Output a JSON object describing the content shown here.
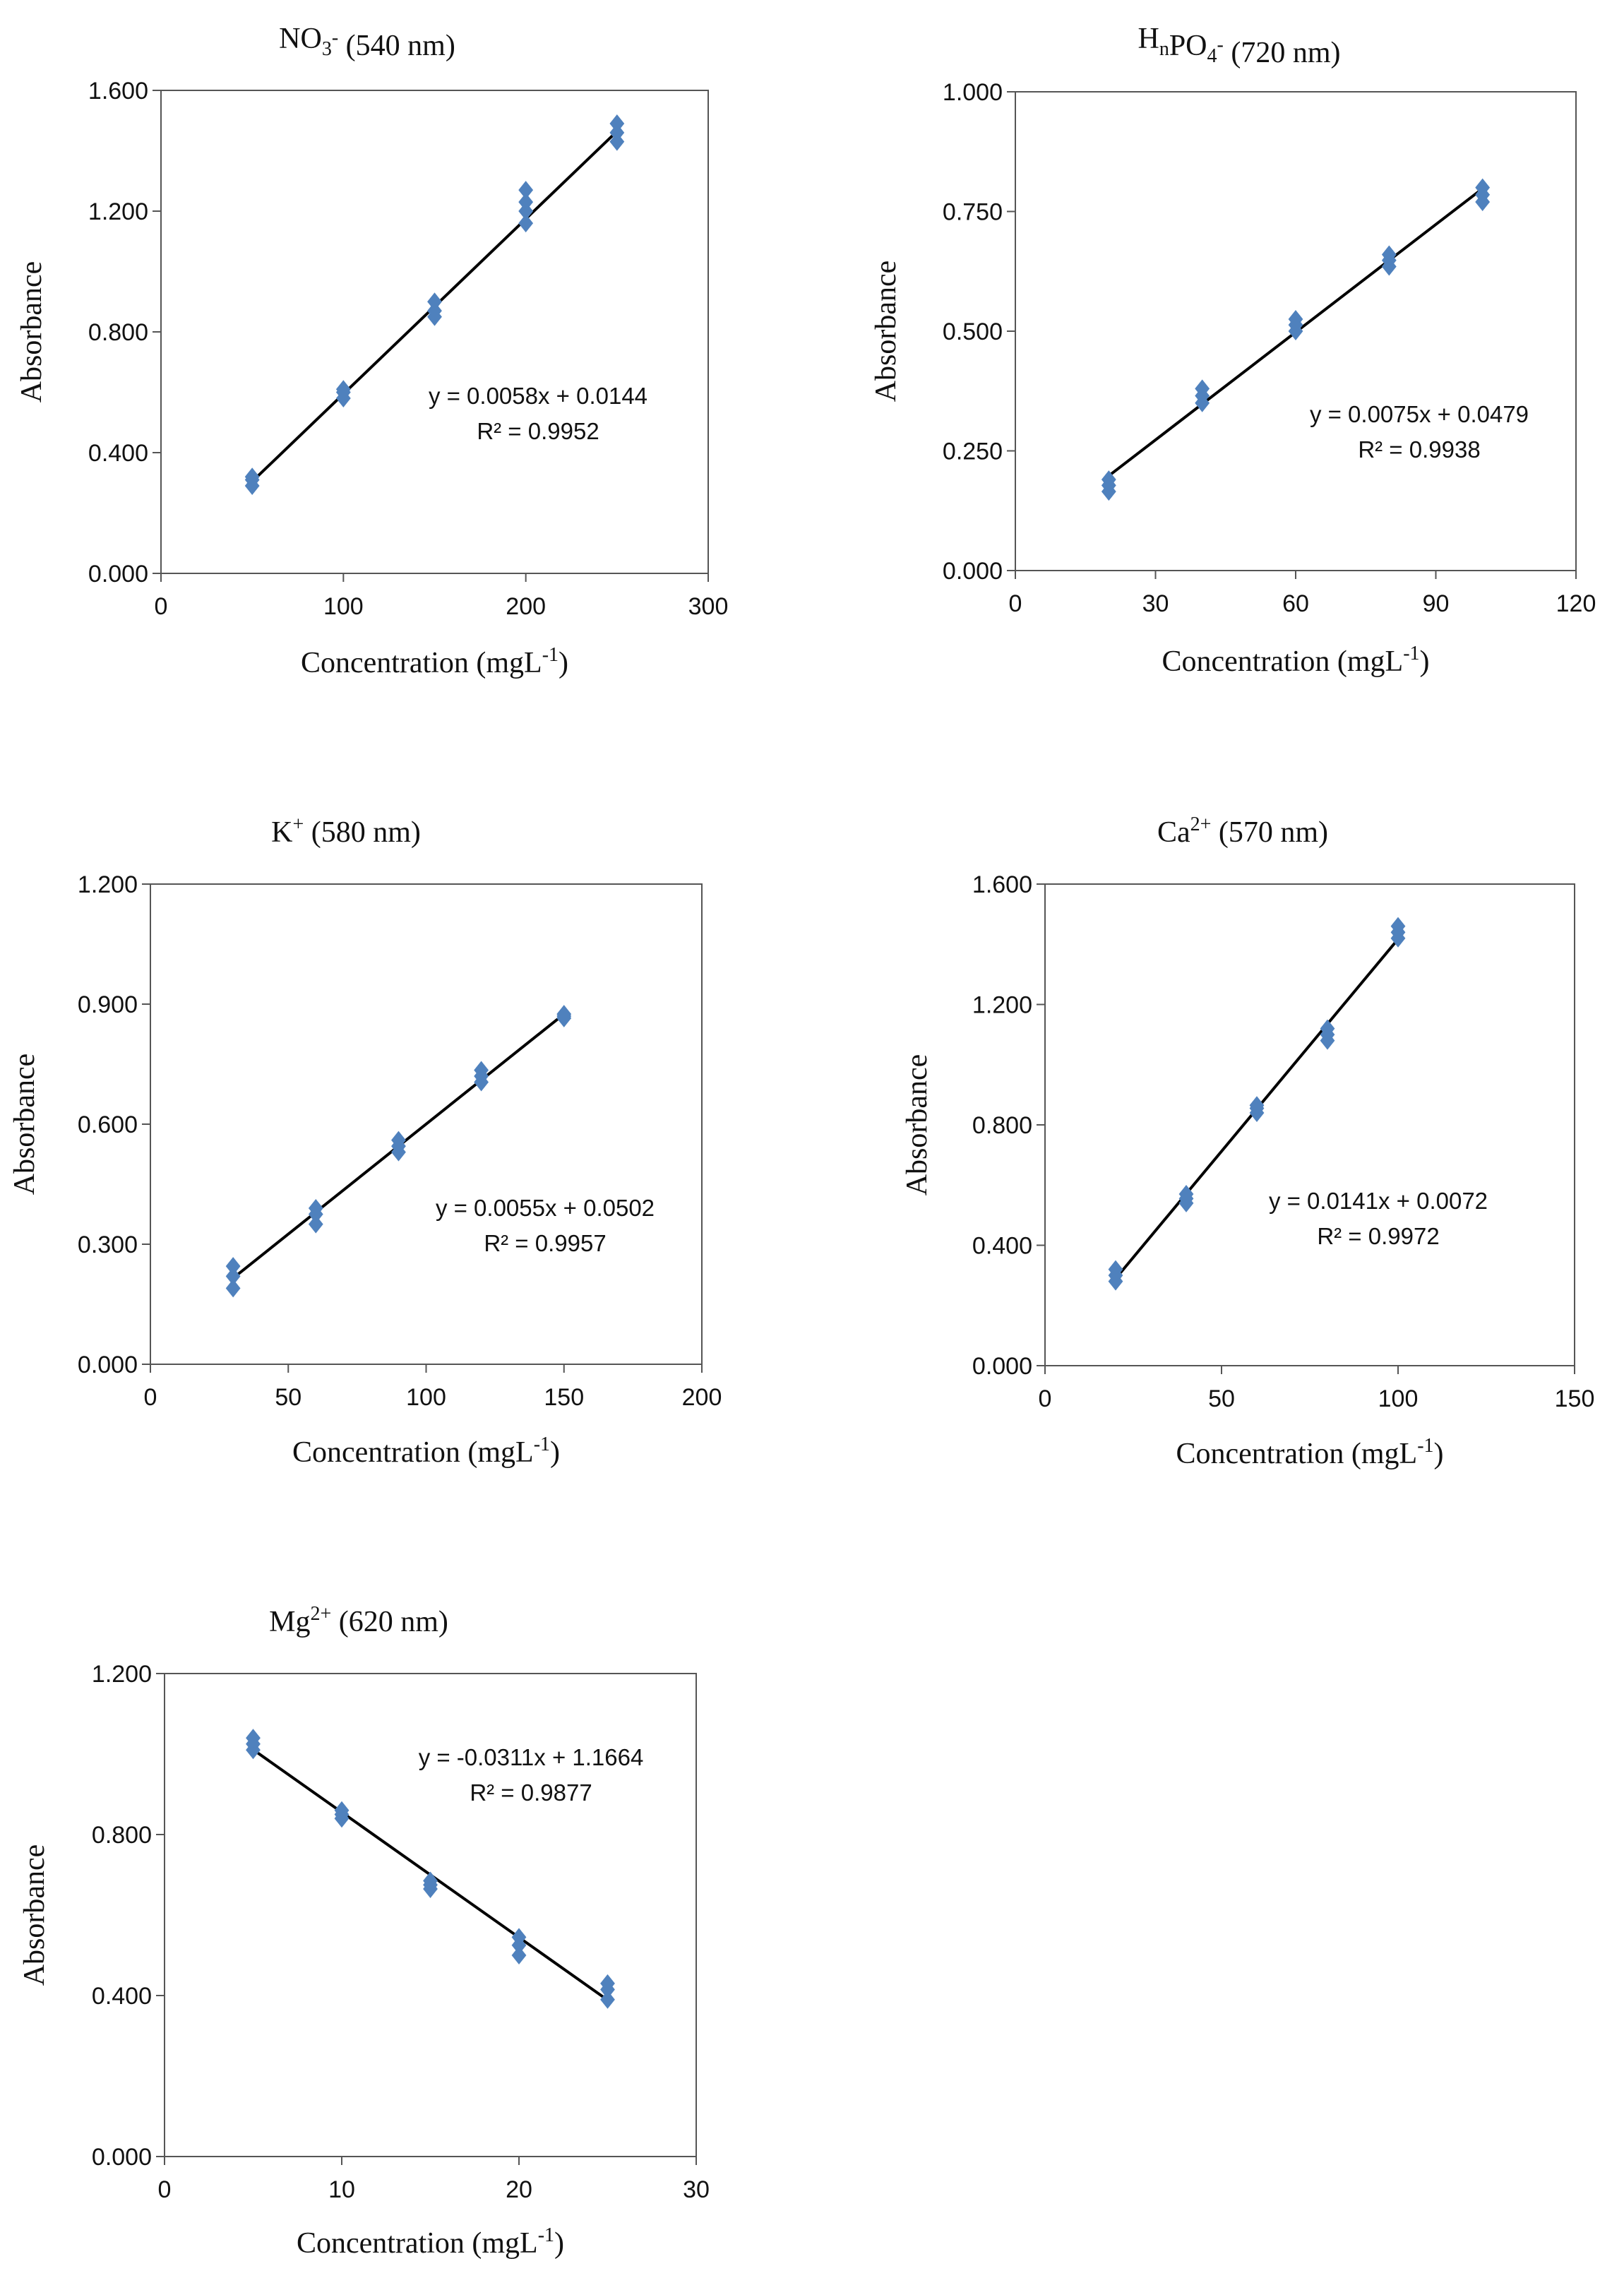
{
  "marker_color": "#4f81bd",
  "line_color": "#000000",
  "chart_data": [
    {
      "type": "scatter",
      "title": {
        "main": "NO",
        "sub": "3",
        "sup": "-",
        "rest": " (540 nm)"
      },
      "xlabel": {
        "main": "Concentration (mgL",
        "sup": "-1",
        "end": ")"
      },
      "ylabel": "Absorbance",
      "xlim": [
        0,
        300
      ],
      "ylim": [
        0,
        1.6
      ],
      "xticks": [
        "0",
        "100",
        "200",
        "300"
      ],
      "yticks": [
        "0.000",
        "0.400",
        "0.800",
        "1.200",
        "1.600"
      ],
      "points": [
        [
          50,
          0.29
        ],
        [
          50,
          0.31
        ],
        [
          50,
          0.32
        ],
        [
          100,
          0.58
        ],
        [
          100,
          0.6
        ],
        [
          100,
          0.61
        ],
        [
          150,
          0.85
        ],
        [
          150,
          0.87
        ],
        [
          150,
          0.9
        ],
        [
          200,
          1.16
        ],
        [
          200,
          1.2
        ],
        [
          200,
          1.23
        ],
        [
          200,
          1.27
        ],
        [
          250,
          1.43
        ],
        [
          250,
          1.46
        ],
        [
          250,
          1.49
        ]
      ],
      "fit": {
        "slope": 0.0058,
        "intercept": 0.0144,
        "x_range": [
          50,
          250
        ]
      },
      "equation": "y = 0.0058x + 0.0144",
      "r2": "R² = 0.9952"
    },
    {
      "type": "scatter",
      "title": {
        "main": "H",
        "sub": "n",
        "mid": "PO",
        "sub2": "4",
        "sup": "-",
        "rest": " (720 nm)"
      },
      "xlabel": {
        "main": "Concentration  (mgL",
        "sup": "-1",
        "end": ")"
      },
      "ylabel": "Absorbance",
      "xlim": [
        0,
        120
      ],
      "ylim": [
        0,
        1.0
      ],
      "xticks": [
        "0",
        "30",
        "60",
        "90",
        "120"
      ],
      "yticks": [
        "0.000",
        "0.250",
        "0.500",
        "0.750",
        "1.000"
      ],
      "points": [
        [
          20,
          0.165
        ],
        [
          20,
          0.178
        ],
        [
          20,
          0.19
        ],
        [
          40,
          0.35
        ],
        [
          40,
          0.365
        ],
        [
          40,
          0.38
        ],
        [
          60,
          0.5
        ],
        [
          60,
          0.513
        ],
        [
          60,
          0.525
        ],
        [
          80,
          0.635
        ],
        [
          80,
          0.648
        ],
        [
          80,
          0.66
        ],
        [
          100,
          0.77
        ],
        [
          100,
          0.785
        ],
        [
          100,
          0.8
        ]
      ],
      "fit": {
        "slope": 0.0075,
        "intercept": 0.0479,
        "x_range": [
          20,
          100
        ]
      },
      "equation": "y = 0.0075x + 0.0479",
      "r2": "R² = 0.9938"
    },
    {
      "type": "scatter",
      "title": {
        "main": "K",
        "sup": "+",
        "rest": " (580 nm)"
      },
      "xlabel": {
        "main": "Concentration  (mgL",
        "sup": "-1",
        "end": ")"
      },
      "ylabel": "Absorbance",
      "xlim": [
        0,
        200
      ],
      "ylim": [
        0,
        1.2
      ],
      "xticks": [
        "0",
        "50",
        "100",
        "150",
        "200"
      ],
      "yticks": [
        "0.000",
        "0.300",
        "0.600",
        "0.900",
        "1.200"
      ],
      "points": [
        [
          30,
          0.19
        ],
        [
          30,
          0.22
        ],
        [
          30,
          0.245
        ],
        [
          60,
          0.35
        ],
        [
          60,
          0.375
        ],
        [
          60,
          0.39
        ],
        [
          90,
          0.53
        ],
        [
          90,
          0.545
        ],
        [
          90,
          0.56
        ],
        [
          120,
          0.705
        ],
        [
          120,
          0.72
        ],
        [
          120,
          0.735
        ],
        [
          150,
          0.865
        ],
        [
          150,
          0.87
        ],
        [
          150,
          0.875
        ]
      ],
      "fit": {
        "slope": 0.0055,
        "intercept": 0.0502,
        "x_range": [
          30,
          150
        ]
      },
      "equation": "y = 0.0055x + 0.0502",
      "r2": "R² = 0.9957"
    },
    {
      "type": "scatter",
      "title": {
        "main": "Ca",
        "sup": "2+",
        "rest": " (570 nm)"
      },
      "xlabel": {
        "main": "Concentration  (mgL",
        "sup": "-1",
        "end": ")"
      },
      "ylabel": "Absorbance",
      "xlim": [
        0,
        150
      ],
      "ylim": [
        0,
        1.6
      ],
      "xticks": [
        "0",
        "50",
        "100",
        "150"
      ],
      "yticks": [
        "0.000",
        "0.400",
        "0.800",
        "1.200",
        "1.600"
      ],
      "points": [
        [
          20,
          0.28
        ],
        [
          20,
          0.3
        ],
        [
          20,
          0.32
        ],
        [
          40,
          0.54
        ],
        [
          40,
          0.555
        ],
        [
          40,
          0.57
        ],
        [
          60,
          0.84
        ],
        [
          60,
          0.855
        ],
        [
          60,
          0.865
        ],
        [
          80,
          1.08
        ],
        [
          80,
          1.1
        ],
        [
          80,
          1.12
        ],
        [
          100,
          1.42
        ],
        [
          100,
          1.44
        ],
        [
          100,
          1.46
        ]
      ],
      "fit": {
        "slope": 0.0141,
        "intercept": 0.0072,
        "x_range": [
          20,
          100
        ]
      },
      "equation": "y = 0.0141x + 0.0072",
      "r2": "R² = 0.9972"
    },
    {
      "type": "scatter",
      "title": {
        "main": "Mg",
        "sup": "2+",
        "rest": " (620 nm)"
      },
      "xlabel": {
        "main": "Concentration  (mgL",
        "sup": "-1",
        "end": ")"
      },
      "ylabel": "Absorbance",
      "xlim": [
        0,
        30
      ],
      "ylim": [
        0,
        1.2
      ],
      "xticks": [
        "0",
        "10",
        "20",
        "30"
      ],
      "yticks": [
        "0.000",
        "0.400",
        "0.800",
        "1.200"
      ],
      "points": [
        [
          5,
          1.01
        ],
        [
          5,
          1.025
        ],
        [
          5,
          1.04
        ],
        [
          10,
          0.84
        ],
        [
          10,
          0.85
        ],
        [
          10,
          0.86
        ],
        [
          15,
          0.665
        ],
        [
          15,
          0.675
        ],
        [
          15,
          0.685
        ],
        [
          20,
          0.5
        ],
        [
          20,
          0.525
        ],
        [
          20,
          0.545
        ],
        [
          25,
          0.39
        ],
        [
          25,
          0.415
        ],
        [
          25,
          0.43
        ]
      ],
      "fit": {
        "slope": -0.0311,
        "intercept": 1.1664,
        "x_range": [
          5,
          25
        ]
      },
      "equation": "y = -0.0311x + 1.1664",
      "r2": "R² = 0.9877"
    }
  ]
}
